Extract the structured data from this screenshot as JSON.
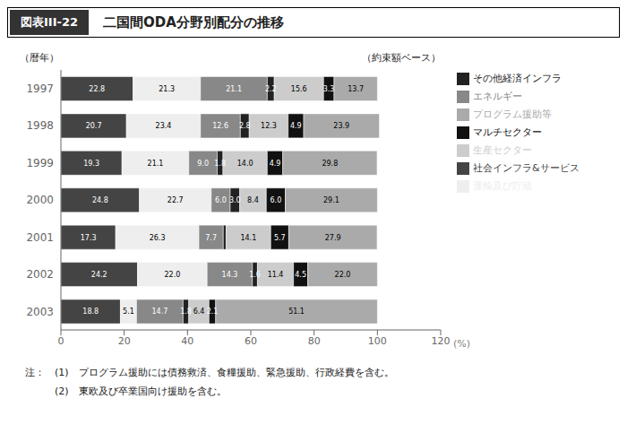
{
  "chart_data": {
    "type": "bar",
    "orientation": "horizontal",
    "stacked": true,
    "data_labels": true,
    "grid": false,
    "legend": "right",
    "title_label": "図表III-22",
    "title": "二国間ODA分野別配分の推移",
    "ylabel": "（暦年）",
    "xlabel": "(%)",
    "annotations": [
      "（約束額ベース）",
      "注：　(1)　プログラム援助には債務救済、食糧援助、緊急援助、行政経費を含む。",
      "　　　(2)　東欧及び卒業国向け援助を含む。"
    ],
    "categories": [
      "1997",
      "1998",
      "1999",
      "2000",
      "2001",
      "2002",
      "2003"
    ],
    "xlim": [
      0,
      120
    ],
    "xticks": [
      0,
      20,
      40,
      60,
      80,
      100,
      120
    ],
    "series": [
      {
        "name": "社会インフラ&サービス",
        "color": "#444444",
        "values": [
          22.8,
          20.7,
          19.3,
          24.8,
          17.3,
          24.2,
          18.8
        ],
        "value_labels": [
          "22.8",
          "20.7",
          "19.3",
          "24.8",
          "17.3",
          "24.2",
          "18.8"
        ]
      },
      {
        "name": "運輸及び貯蔵",
        "color": "#eeeeee",
        "values": [
          21.3,
          23.4,
          21.1,
          22.7,
          26.3,
          22.0,
          5.1
        ],
        "value_labels": [
          "21.3",
          "23.4",
          "21.1",
          "22.7",
          "26.3",
          "22.0",
          "5.1"
        ]
      },
      {
        "name": "エネルギー",
        "color": "#888888",
        "values": [
          21.1,
          12.6,
          9.0,
          6.0,
          7.7,
          14.3,
          14.7
        ],
        "value_labels": [
          "21.1",
          "12.6",
          "9.0",
          "6.0",
          "7.7",
          "14.3",
          "14.7"
        ]
      },
      {
        "name": "その他経済インフラ",
        "color": "#222222",
        "values": [
          2.2,
          2.8,
          1.8,
          3.0,
          0.9,
          1.6,
          1.8
        ],
        "value_labels": [
          "2.2",
          "2.8",
          "1.8",
          "3.0",
          null,
          "1.6",
          "1.8"
        ]
      },
      {
        "name": "生産セクター",
        "color": "#cccccc",
        "values": [
          15.6,
          12.3,
          14.0,
          8.4,
          14.1,
          11.4,
          6.4
        ],
        "value_labels": [
          "15.6",
          "12.3",
          "14.0",
          "8.4",
          "14.1",
          "11.4",
          "6.4"
        ]
      },
      {
        "name": "マルチセクター",
        "color": "#111111",
        "values": [
          3.3,
          4.9,
          4.9,
          6.0,
          5.7,
          4.5,
          2.1
        ],
        "value_labels": [
          "3.3",
          "4.9",
          "4.9",
          "6.0",
          "5.7",
          "4.5",
          "2.1"
        ]
      },
      {
        "name": "プログラム援助等",
        "color": "#aaaaaa",
        "values": [
          13.7,
          23.9,
          29.8,
          29.1,
          27.9,
          22.0,
          51.1
        ],
        "value_labels": [
          "13.7",
          "23.9",
          "29.8",
          "29.1",
          "27.9",
          "22.0",
          "51.1"
        ]
      }
    ]
  }
}
